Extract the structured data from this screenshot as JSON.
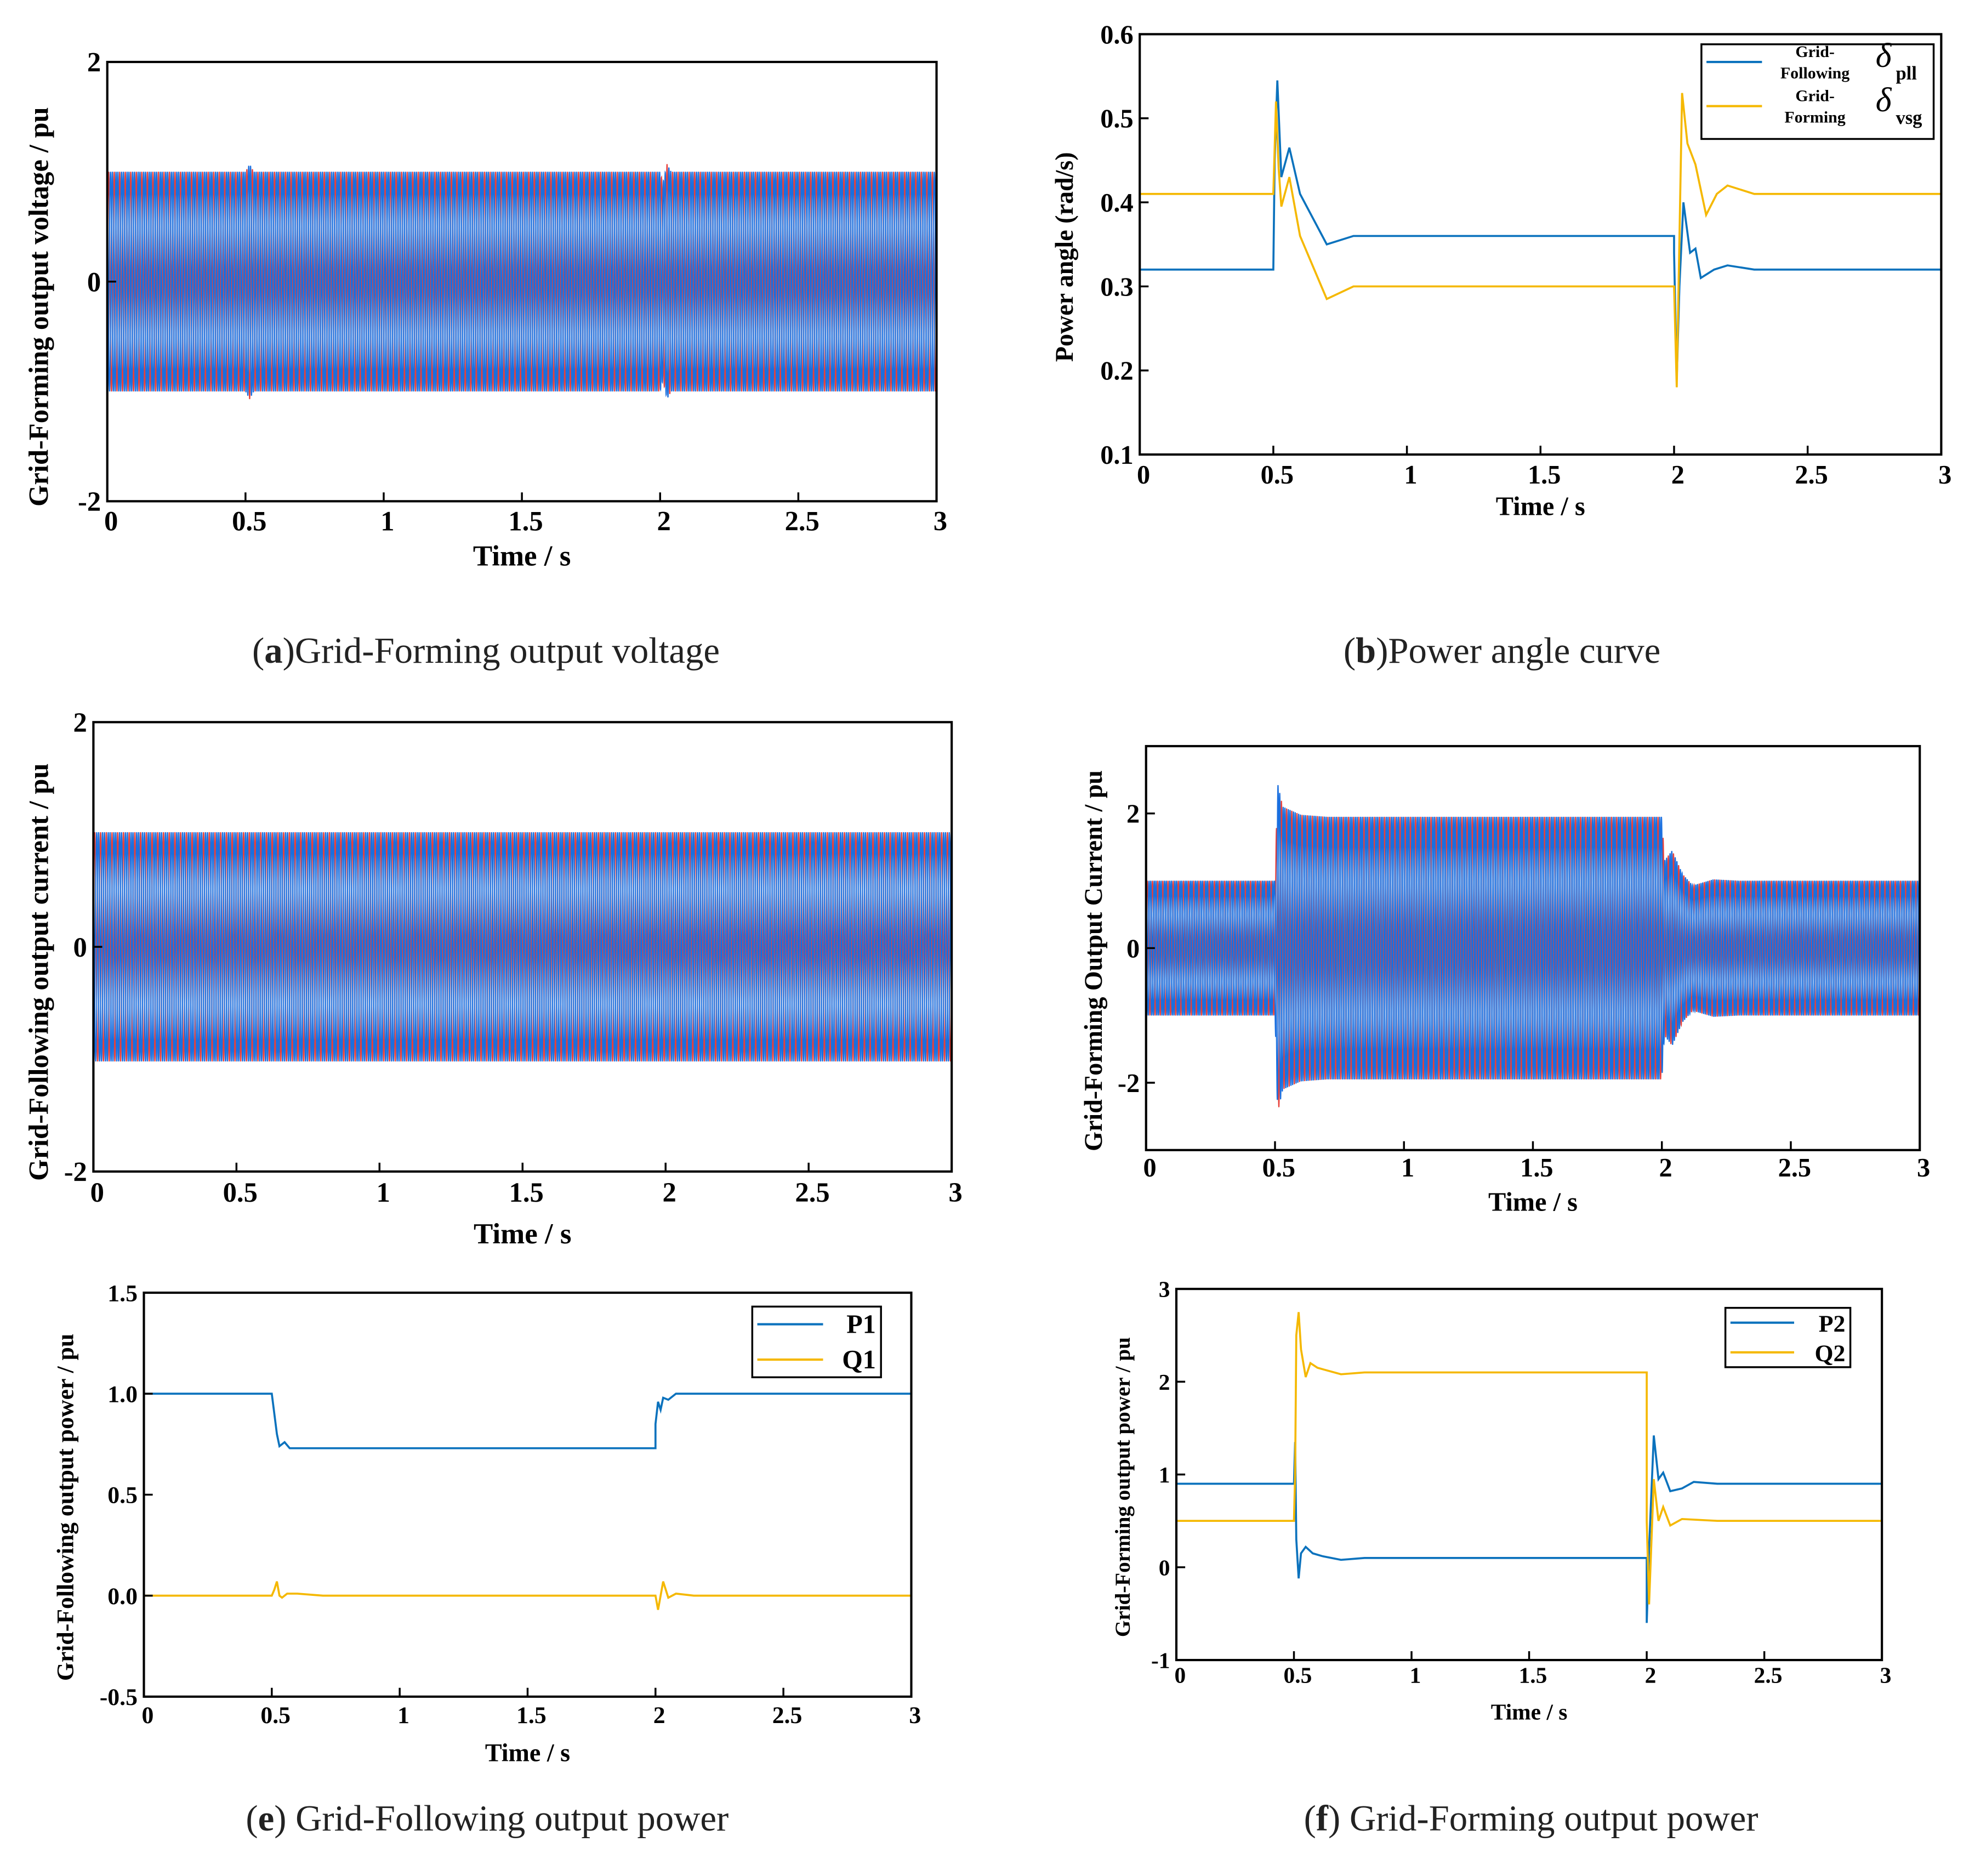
{
  "colors": {
    "blue": "#1a6fdf",
    "red": "#e8403a",
    "line_blue": "#0b72bd",
    "line_yellow": "#f5b800"
  },
  "chart_data": [
    {
      "id": "a",
      "type": "line",
      "caption": {
        "letter": "a",
        "open": "(",
        "close": ")",
        "text": "Grid-Forming output voltage"
      },
      "xlabel": "Time / s",
      "ylabel": "Grid-Forming output voltage / pu",
      "xlim": [
        0,
        3
      ],
      "ylim": [
        -2,
        2
      ],
      "xticks": [
        "0",
        "0.5",
        "1",
        "1.5",
        "2",
        "2.5",
        "3"
      ],
      "yticks": [
        "-2",
        "0",
        "2"
      ],
      "waveform": {
        "frequency_hz": 50,
        "phases": 3,
        "envelope": [
          [
            0,
            1
          ],
          [
            0.5,
            1
          ],
          [
            0.515,
            1.07
          ],
          [
            0.53,
            1.0
          ],
          [
            2.0,
            1.0
          ],
          [
            2.01,
            0.9
          ],
          [
            2.025,
            1.07
          ],
          [
            2.04,
            1.0
          ],
          [
            3,
            1
          ]
        ]
      }
    },
    {
      "id": "b",
      "type": "line",
      "caption": {
        "letter": "b",
        "open": "(",
        "close": ")",
        "text": "Power angle curve"
      },
      "xlabel": "Time / s",
      "ylabel": "Power angle (rad/s)",
      "xlim": [
        0,
        3
      ],
      "ylim": [
        0.1,
        0.6
      ],
      "xticks": [
        "0",
        "0.5",
        "1",
        "1.5",
        "2",
        "2.5",
        "3"
      ],
      "yticks": [
        "0.1",
        "0.2",
        "0.3",
        "0.4",
        "0.5",
        "0.6"
      ],
      "legend": [
        {
          "line1": "Grid-",
          "line2": "Following",
          "symbol": "δ",
          "sub": "pll"
        },
        {
          "line1": "Grid-",
          "line2": "Forming",
          "symbol": "δ",
          "sub": "vsg"
        }
      ],
      "series": [
        {
          "name": "Grid-Following δpll",
          "color": "line_blue",
          "points": [
            [
              0,
              0.32
            ],
            [
              0.5,
              0.32
            ],
            [
              0.505,
              0.45
            ],
            [
              0.515,
              0.545
            ],
            [
              0.53,
              0.43
            ],
            [
              0.56,
              0.465
            ],
            [
              0.6,
              0.41
            ],
            [
              0.7,
              0.35
            ],
            [
              0.8,
              0.36
            ],
            [
              0.9,
              0.36
            ],
            [
              2.0,
              0.36
            ],
            [
              2.0,
              0.34
            ],
            [
              2.01,
              0.19
            ],
            [
              2.02,
              0.3
            ],
            [
              2.035,
              0.4
            ],
            [
              2.06,
              0.34
            ],
            [
              2.08,
              0.345
            ],
            [
              2.1,
              0.31
            ],
            [
              2.15,
              0.32
            ],
            [
              2.2,
              0.325
            ],
            [
              2.3,
              0.32
            ],
            [
              3,
              0.32
            ]
          ]
        },
        {
          "name": "Grid-Forming δvsg",
          "color": "line_yellow",
          "points": [
            [
              0,
              0.41
            ],
            [
              0.5,
              0.41
            ],
            [
              0.51,
              0.52
            ],
            [
              0.52,
              0.44
            ],
            [
              0.53,
              0.395
            ],
            [
              0.56,
              0.43
            ],
            [
              0.6,
              0.36
            ],
            [
              0.7,
              0.285
            ],
            [
              0.8,
              0.3
            ],
            [
              0.9,
              0.3
            ],
            [
              2.0,
              0.3
            ],
            [
              2.01,
              0.18
            ],
            [
              2.03,
              0.53
            ],
            [
              2.05,
              0.47
            ],
            [
              2.08,
              0.445
            ],
            [
              2.12,
              0.385
            ],
            [
              2.16,
              0.41
            ],
            [
              2.2,
              0.42
            ],
            [
              2.3,
              0.41
            ],
            [
              3,
              0.41
            ]
          ]
        }
      ]
    },
    {
      "id": "c",
      "type": "line",
      "xlabel": "Time / s",
      "ylabel": "Grid-Following output current / pu",
      "xlim": [
        0,
        3
      ],
      "ylim": [
        -2,
        2
      ],
      "xticks": [
        "0",
        "0.5",
        "1",
        "1.5",
        "2",
        "2.5",
        "3"
      ],
      "yticks": [
        "-2",
        "0",
        "2"
      ],
      "waveform": {
        "frequency_hz": 50,
        "phases": 3,
        "envelope": [
          [
            0,
            1.02
          ],
          [
            3,
            1.02
          ]
        ]
      }
    },
    {
      "id": "d",
      "type": "line",
      "xlabel": "Time / s",
      "ylabel": "Grid-Forming Output Current / pu",
      "xlim": [
        0,
        3
      ],
      "ylim": [
        -3,
        3
      ],
      "xticks": [
        "0",
        "0.5",
        "1",
        "1.5",
        "2",
        "2.5",
        "3"
      ],
      "yticks": [
        "-2",
        "0",
        "2"
      ],
      "waveform": {
        "frequency_hz": 50,
        "phases": 3,
        "envelope": [
          [
            0,
            1
          ],
          [
            0.5,
            1
          ],
          [
            0.51,
            2.45
          ],
          [
            0.53,
            2.1
          ],
          [
            0.6,
            1.98
          ],
          [
            0.7,
            1.95
          ],
          [
            2.0,
            1.95
          ],
          [
            2.01,
            1.3
          ],
          [
            2.04,
            1.45
          ],
          [
            2.08,
            1.1
          ],
          [
            2.12,
            0.93
          ],
          [
            2.2,
            1.02
          ],
          [
            2.3,
            1
          ],
          [
            3,
            1
          ]
        ]
      }
    },
    {
      "id": "e",
      "type": "line",
      "caption": {
        "letter": "e",
        "open": "(",
        "close": ")",
        "text": " Grid-Following output power"
      },
      "xlabel": "Time / s",
      "ylabel": "Grid-Following output power / pu",
      "xlim": [
        0,
        3
      ],
      "ylim": [
        -0.5,
        1.5
      ],
      "xticks": [
        "0",
        "0.5",
        "1",
        "1.5",
        "2",
        "2.5",
        "3"
      ],
      "yticks": [
        "-0.5",
        "0.0",
        "0.5",
        "1.0",
        "1.5"
      ],
      "legend": [
        {
          "label": "P1"
        },
        {
          "label": "Q1"
        }
      ],
      "series": [
        {
          "name": "P1",
          "color": "line_blue",
          "points": [
            [
              0,
              1
            ],
            [
              0.5,
              1
            ],
            [
              0.52,
              0.8
            ],
            [
              0.53,
              0.74
            ],
            [
              0.55,
              0.76
            ],
            [
              0.57,
              0.73
            ],
            [
              0.6,
              0.73
            ],
            [
              2.0,
              0.73
            ],
            [
              2.0,
              0.85
            ],
            [
              2.01,
              0.96
            ],
            [
              2.02,
              0.92
            ],
            [
              2.03,
              0.98
            ],
            [
              2.05,
              0.97
            ],
            [
              2.08,
              1.0
            ],
            [
              3,
              1
            ]
          ]
        },
        {
          "name": "Q1",
          "color": "line_yellow",
          "points": [
            [
              0,
              0
            ],
            [
              0.5,
              0
            ],
            [
              0.51,
              0.03
            ],
            [
              0.52,
              0.07
            ],
            [
              0.53,
              0.0
            ],
            [
              0.54,
              -0.01
            ],
            [
              0.56,
              0.01
            ],
            [
              0.6,
              0.01
            ],
            [
              0.7,
              0
            ],
            [
              2.0,
              0
            ],
            [
              2.01,
              -0.07
            ],
            [
              2.02,
              0.0
            ],
            [
              2.03,
              0.07
            ],
            [
              2.05,
              -0.01
            ],
            [
              2.08,
              0.01
            ],
            [
              2.15,
              0
            ],
            [
              3,
              0
            ]
          ]
        }
      ]
    },
    {
      "id": "f",
      "type": "line",
      "caption": {
        "letter": "f",
        "open": "(",
        "close": ")",
        "text": " Grid-Forming output power"
      },
      "xlabel": "Time / s",
      "ylabel": "Grid-Forming output power / pu",
      "xlim": [
        0,
        3
      ],
      "ylim": [
        -1,
        3
      ],
      "xticks": [
        "0",
        "0.5",
        "1",
        "1.5",
        "2",
        "2.5",
        "3"
      ],
      "yticks": [
        "-1",
        "0",
        "1",
        "2",
        "3"
      ],
      "legend": [
        {
          "label": "P2"
        },
        {
          "label": "Q2"
        }
      ],
      "series": [
        {
          "name": "P2",
          "color": "line_blue",
          "points": [
            [
              0,
              0.9
            ],
            [
              0.5,
              0.9
            ],
            [
              0.505,
              1.35
            ],
            [
              0.51,
              0.3
            ],
            [
              0.52,
              -0.12
            ],
            [
              0.53,
              0.15
            ],
            [
              0.55,
              0.22
            ],
            [
              0.58,
              0.15
            ],
            [
              0.62,
              0.12
            ],
            [
              0.7,
              0.08
            ],
            [
              0.8,
              0.1
            ],
            [
              2.0,
              0.1
            ],
            [
              2.0,
              -0.6
            ],
            [
              2.01,
              0.2
            ],
            [
              2.03,
              1.42
            ],
            [
              2.05,
              0.95
            ],
            [
              2.07,
              1.02
            ],
            [
              2.1,
              0.82
            ],
            [
              2.15,
              0.85
            ],
            [
              2.2,
              0.92
            ],
            [
              2.3,
              0.9
            ],
            [
              3,
              0.9
            ]
          ]
        },
        {
          "name": "Q2",
          "color": "line_yellow",
          "points": [
            [
              0,
              0.5
            ],
            [
              0.5,
              0.5
            ],
            [
              0.505,
              1.0
            ],
            [
              0.51,
              2.5
            ],
            [
              0.52,
              2.75
            ],
            [
              0.53,
              2.35
            ],
            [
              0.55,
              2.05
            ],
            [
              0.57,
              2.2
            ],
            [
              0.6,
              2.15
            ],
            [
              0.7,
              2.08
            ],
            [
              0.8,
              2.1
            ],
            [
              2.0,
              2.1
            ],
            [
              2.0,
              0.5
            ],
            [
              2.01,
              -0.4
            ],
            [
              2.03,
              0.95
            ],
            [
              2.05,
              0.5
            ],
            [
              2.07,
              0.65
            ],
            [
              2.1,
              0.45
            ],
            [
              2.15,
              0.52
            ],
            [
              2.3,
              0.5
            ],
            [
              3,
              0.5
            ]
          ]
        }
      ]
    }
  ]
}
